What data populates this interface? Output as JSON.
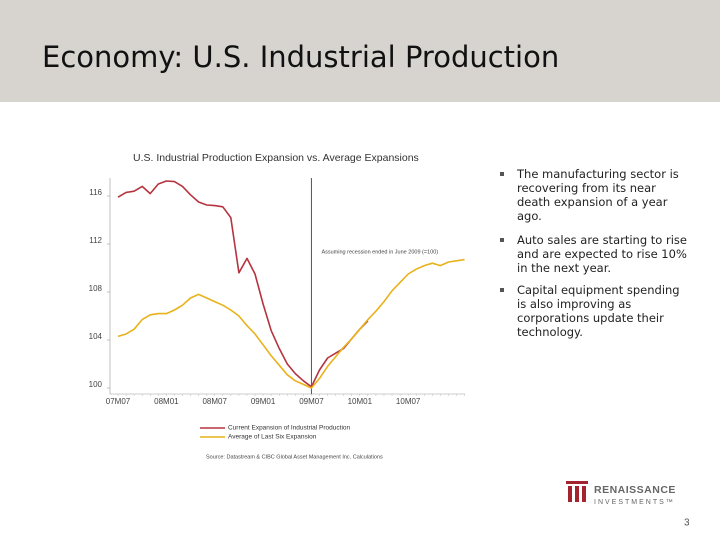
{
  "slide": {
    "title": "Economy: U.S. Industrial Production",
    "bullets": [
      "The manufacturing sector is recovering from its near death expansion of a year ago.",
      "Auto sales are starting to rise and are expected to rise 10% in the next year.",
      "Capital equipment spending is also improving as corporations update their technology."
    ],
    "logo": {
      "name": "RENAISSANCE",
      "subtitle": "INVESTMENTS™"
    },
    "page_number": "3"
  },
  "chart_data": {
    "type": "line",
    "title": "U.S. Industrial Production Expansion vs. Average Expansions",
    "source": "Source: Datastream & CIBC Global Asset Management Inc. Calculations",
    "annotations": [
      {
        "text": "Assuming recession ended in June 2009 (=100)",
        "x_index": 24
      }
    ],
    "categories": [
      "07M07",
      null,
      null,
      null,
      null,
      null,
      "08M01",
      null,
      null,
      null,
      null,
      null,
      "08M07",
      null,
      null,
      null,
      null,
      null,
      "09M01",
      null,
      null,
      null,
      null,
      null,
      "09M07",
      null,
      null,
      null,
      null,
      null,
      "10M01",
      null,
      null,
      null,
      null,
      null,
      "10M07",
      null,
      null,
      null,
      null,
      null,
      null,
      null
    ],
    "series": [
      {
        "name": "Current Expansion of Industrial Production",
        "color": "#b5343f",
        "values": [
          115.9,
          116.3,
          116.4,
          116.8,
          116.2,
          117.0,
          117.25,
          117.2,
          116.8,
          116.1,
          115.5,
          115.25,
          115.2,
          115.1,
          114.2,
          109.6,
          110.8,
          109.5,
          107.0,
          104.8,
          103.3,
          102.0,
          101.2,
          100.6,
          100.1,
          101.5,
          102.5,
          102.9,
          103.3,
          104.1,
          104.9,
          105.6,
          null,
          null,
          null,
          null,
          null,
          null,
          null,
          null,
          null,
          null,
          null,
          null
        ]
      },
      {
        "name": "Average of Last Six Expansion",
        "color": "#e8b21a",
        "values": [
          104.3,
          104.5,
          104.9,
          105.7,
          106.1,
          106.2,
          106.2,
          106.5,
          106.9,
          107.5,
          107.8,
          107.5,
          107.2,
          106.9,
          106.5,
          106.0,
          105.2,
          104.5,
          103.6,
          102.7,
          101.9,
          101.1,
          100.6,
          100.3,
          100.0,
          100.8,
          101.8,
          102.6,
          103.4,
          104.1,
          104.9,
          105.7,
          106.4,
          107.2,
          108.1,
          108.8,
          109.5,
          109.9,
          110.2,
          110.4,
          110.2,
          110.5,
          110.6,
          110.7
        ]
      }
    ],
    "ylim": [
      99.5,
      117.5
    ],
    "yticks": [
      100,
      104,
      108,
      112,
      116
    ],
    "grid": false
  }
}
